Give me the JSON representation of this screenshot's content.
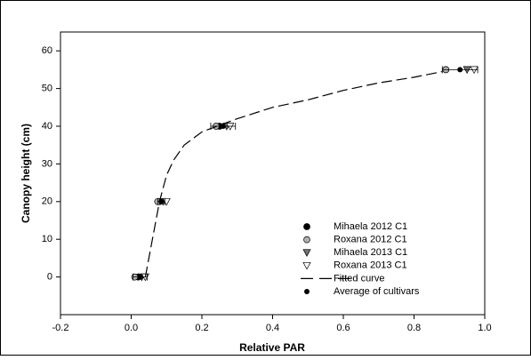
{
  "chart_data": {
    "type": "scatter",
    "xlabel": "Relative PAR",
    "ylabel": "Canopy height (cm)",
    "xlim": [
      -0.2,
      1.0
    ],
    "ylim": [
      -10,
      65
    ],
    "xticks": [
      -0.2,
      {
        "value": 0,
        "label": "0.0"
      },
      0.2,
      0.4,
      0.6,
      0.8,
      {
        "value": 1,
        "label": "1.0"
      }
    ],
    "yticks": [
      0,
      10,
      20,
      30,
      40,
      50,
      60
    ],
    "grid": false,
    "legend": "lower right",
    "series": [
      {
        "name": "Mihaela 2012 C1",
        "color": "#000000",
        "marker": "circle",
        "x": [
          0.02,
          0.08,
          0.25,
          0.89
        ],
        "values": [
          0,
          20,
          40,
          55
        ]
      },
      {
        "name": "Roxana 2012 C1",
        "color": "#b0b0b0",
        "marker": "circle",
        "x": [
          0.01,
          0.075,
          0.24,
          0.89
        ],
        "values": [
          0,
          20,
          40,
          55
        ]
      },
      {
        "name": "Mihaela 2013 C1",
        "color": "#707070",
        "marker": "triangle-down",
        "x": [
          0.03,
          0.09,
          0.27,
          0.95
        ],
        "values": [
          0,
          20,
          40,
          55
        ]
      },
      {
        "name": "Roxana 2013 C1",
        "color": "#ffffff",
        "marker": "triangle-down",
        "x": [
          0.04,
          0.1,
          0.28,
          0.97
        ],
        "values": [
          0,
          20,
          40,
          55
        ]
      },
      {
        "name": "Fitted curve",
        "color": "#000000",
        "marker": "dashed-line",
        "x": [
          0.04,
          0.06,
          0.08,
          0.1,
          0.12,
          0.15,
          0.2,
          0.3,
          0.4,
          0.5,
          0.6,
          0.7,
          0.8,
          0.88
        ],
        "values": [
          0,
          10,
          20,
          27,
          31,
          35,
          38.5,
          42,
          45,
          47,
          49.5,
          51.5,
          53,
          54.5
        ]
      },
      {
        "name": "Average of cultivars",
        "color": "#000000",
        "marker": "dot",
        "x": [
          0.025,
          0.085,
          0.26,
          0.93
        ],
        "values": [
          0,
          20,
          40,
          55
        ],
        "xerr": [
          0.02,
          0.01,
          0.035,
          0.05
        ]
      }
    ]
  }
}
